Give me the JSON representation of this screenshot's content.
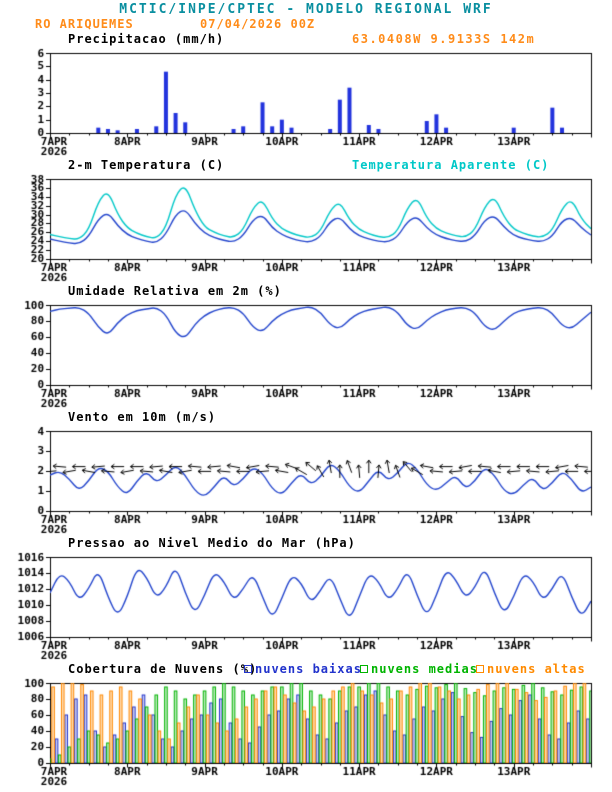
{
  "header": {
    "title": "MCTIC/INPE/CPTEC - MODELO REGIONAL WRF",
    "station": "RO ARIQUEMES",
    "run": "07/04/2026 00Z",
    "coords": "63.0408W 9.9133S 142m",
    "title_color": "#0a8fa0",
    "accent_color": "#ff8c1a"
  },
  "axis": {
    "day_labels": [
      "7APR",
      "8APR",
      "9APR",
      "10APR",
      "11APR",
      "12APR",
      "13APR"
    ],
    "year": "2026",
    "hours_total": 168,
    "step_hours": 3
  },
  "chart_data": [
    {
      "type": "bar",
      "title": "Precipitacao (mm/h)",
      "ylim": [
        0,
        6
      ],
      "yticks": [
        0,
        1,
        2,
        3,
        4,
        5,
        6
      ],
      "color": "#2233dd",
      "bars": [
        {
          "h": 15,
          "v": 0.4
        },
        {
          "h": 18,
          "v": 0.3
        },
        {
          "h": 21,
          "v": 0.2
        },
        {
          "h": 27,
          "v": 0.3
        },
        {
          "h": 33,
          "v": 0.5
        },
        {
          "h": 36,
          "v": 4.6
        },
        {
          "h": 39,
          "v": 1.5
        },
        {
          "h": 42,
          "v": 0.8
        },
        {
          "h": 57,
          "v": 0.3
        },
        {
          "h": 60,
          "v": 0.5
        },
        {
          "h": 66,
          "v": 2.3
        },
        {
          "h": 69,
          "v": 0.5
        },
        {
          "h": 72,
          "v": 1.0
        },
        {
          "h": 75,
          "v": 0.4
        },
        {
          "h": 87,
          "v": 0.3
        },
        {
          "h": 90,
          "v": 2.5
        },
        {
          "h": 93,
          "v": 3.4
        },
        {
          "h": 99,
          "v": 0.6
        },
        {
          "h": 102,
          "v": 0.3
        },
        {
          "h": 117,
          "v": 0.9
        },
        {
          "h": 120,
          "v": 1.4
        },
        {
          "h": 123,
          "v": 0.4
        },
        {
          "h": 144,
          "v": 0.4
        },
        {
          "h": 156,
          "v": 1.9
        },
        {
          "h": 159,
          "v": 0.4
        }
      ]
    },
    {
      "type": "line",
      "title": "2-m Temperatura (C)",
      "ylim": [
        20,
        38
      ],
      "yticks": [
        20,
        22,
        24,
        26,
        28,
        30,
        32,
        34,
        36,
        38
      ],
      "series": [
        {
          "name": "2-m Temperatura (C)",
          "color": "#2244cc",
          "values": [
            24.5,
            24.0,
            23.6,
            23.4,
            25.0,
            29.0,
            30.5,
            27.5,
            25.5,
            24.6,
            24.0,
            23.6,
            25.5,
            30.0,
            31.3,
            28.0,
            25.8,
            24.8,
            24.2,
            23.8,
            25.2,
            28.8,
            30.0,
            27.0,
            25.5,
            24.6,
            24.0,
            23.8,
            25.0,
            28.5,
            29.5,
            26.8,
            25.2,
            24.5,
            24.0,
            23.8,
            25.0,
            28.5,
            29.6,
            27.0,
            25.4,
            24.6,
            24.1,
            23.9,
            25.2,
            28.8,
            29.8,
            27.2,
            25.3,
            24.6,
            24.1,
            23.9,
            25.1,
            28.6,
            29.4,
            27.0,
            25.4
          ]
        },
        {
          "name": "Temperatura Aparente (C)",
          "color": "#00c8c8",
          "values": [
            25.5,
            25.0,
            24.6,
            24.4,
            26.5,
            33.0,
            35.5,
            30.0,
            27.0,
            25.8,
            25.0,
            24.6,
            27.0,
            34.5,
            36.8,
            31.0,
            27.2,
            26.0,
            25.2,
            24.8,
            26.5,
            31.5,
            33.5,
            29.0,
            26.8,
            25.8,
            25.1,
            24.8,
            26.2,
            31.0,
            33.0,
            28.8,
            26.6,
            25.7,
            25.0,
            24.8,
            26.3,
            31.5,
            34.0,
            29.2,
            26.8,
            25.9,
            25.2,
            24.9,
            26.5,
            31.8,
            34.2,
            29.4,
            26.7,
            25.8,
            25.1,
            24.9,
            26.4,
            31.4,
            33.6,
            29.0,
            26.8
          ]
        }
      ]
    },
    {
      "type": "line",
      "title": "Umidade Relativa em 2m (%)",
      "ylim": [
        0,
        100
      ],
      "yticks": [
        0,
        20,
        40,
        60,
        80,
        100
      ],
      "series": [
        {
          "name": "Umidade Relativa",
          "color": "#2244cc",
          "values": [
            92,
            95,
            96,
            97,
            90,
            72,
            62,
            78,
            88,
            93,
            95,
            97,
            88,
            65,
            58,
            76,
            87,
            93,
            96,
            97,
            90,
            72,
            66,
            80,
            89,
            94,
            96,
            98,
            91,
            75,
            70,
            82,
            90,
            94,
            96,
            98,
            91,
            74,
            69,
            81,
            89,
            94,
            96,
            97,
            90,
            73,
            68,
            80,
            90,
            94,
            96,
            97,
            90,
            74,
            70,
            81,
            91
          ]
        }
      ]
    },
    {
      "type": "wind",
      "title": "Vento em 10m (m/s)",
      "ylim": [
        0,
        4
      ],
      "yticks": [
        0,
        1,
        2,
        3,
        4
      ],
      "series": [
        {
          "name": "Vento em 10m",
          "color": "#2244cc",
          "values": [
            1.8,
            2.0,
            1.6,
            1.0,
            1.5,
            2.2,
            2.0,
            1.2,
            0.8,
            1.5,
            2.0,
            1.4,
            1.8,
            2.3,
            1.8,
            1.0,
            0.7,
            1.2,
            1.8,
            1.2,
            1.6,
            2.2,
            1.9,
            1.1,
            0.8,
            1.4,
            1.9,
            1.3,
            1.7,
            2.4,
            2.0,
            1.2,
            0.9,
            1.5,
            2.1,
            1.5,
            1.9,
            2.5,
            2.1,
            1.3,
            1.0,
            1.4,
            1.8,
            1.1,
            1.5,
            2.2,
            1.8,
            1.0,
            0.8,
            1.3,
            1.7,
            1.0,
            1.4,
            2.0,
            1.6,
            0.9,
            1.2
          ]
        }
      ],
      "arrows": {
        "y": 2.1,
        "color": "#000000",
        "dirs": [
          185,
          175,
          190,
          180,
          170,
          185,
          175,
          180,
          190,
          180,
          175,
          185,
          170,
          180,
          190,
          175,
          180,
          185,
          175,
          170,
          180,
          190,
          185,
          175,
          170,
          160,
          150,
          140,
          120,
          100,
          90,
          110,
          95,
          90,
          85,
          100,
          110,
          130,
          150,
          170,
          175,
          180,
          185,
          190,
          180,
          175,
          170,
          180,
          185,
          180,
          175,
          180,
          185,
          190,
          180,
          175,
          180
        ]
      }
    },
    {
      "type": "line",
      "title": "Pressao ao Nivel Medio do Mar (hPa)",
      "ylim": [
        1006,
        1016
      ],
      "yticks": [
        1006,
        1008,
        1010,
        1012,
        1014,
        1016
      ],
      "series": [
        {
          "name": "Pressao ao Nivel Medio do Mar",
          "color": "#2244cc",
          "values": [
            1011.5,
            1014.0,
            1013.0,
            1010.5,
            1012.0,
            1014.5,
            1011.0,
            1008.5,
            1011.0,
            1014.8,
            1013.5,
            1010.8,
            1012.2,
            1015.0,
            1011.5,
            1008.8,
            1011.2,
            1014.2,
            1013.0,
            1010.5,
            1012.0,
            1014.0,
            1011.0,
            1008.2,
            1010.8,
            1013.8,
            1012.8,
            1010.2,
            1011.8,
            1013.8,
            1010.8,
            1008.0,
            1011.0,
            1014.0,
            1013.0,
            1010.5,
            1012.0,
            1014.5,
            1011.2,
            1008.5,
            1011.2,
            1014.5,
            1013.2,
            1010.8,
            1012.2,
            1014.8,
            1011.5,
            1008.8,
            1011.0,
            1014.0,
            1013.0,
            1010.5,
            1012.0,
            1014.2,
            1011.0,
            1008.4,
            1010.5
          ]
        }
      ]
    },
    {
      "type": "cloud",
      "title": "Cobertura de Nuvens (%)",
      "ylim": [
        0,
        100
      ],
      "yticks": [
        0,
        20,
        40,
        60,
        80,
        100
      ],
      "series": [
        {
          "name": "nuvens baixas",
          "color": "#2233cc",
          "fill": "rgba(34,51,204,0.22)",
          "values": [
            10,
            30,
            60,
            80,
            85,
            40,
            20,
            35,
            50,
            70,
            85,
            60,
            30,
            20,
            40,
            55,
            60,
            75,
            80,
            50,
            30,
            25,
            45,
            60,
            65,
            80,
            85,
            55,
            35,
            30,
            50,
            65,
            70,
            85,
            90,
            60,
            40,
            35,
            55,
            70,
            65,
            80,
            88,
            58,
            38,
            32,
            52,
            68,
            60,
            78,
            85,
            55,
            35,
            30,
            50,
            65,
            55
          ]
        },
        {
          "name": "nuvens medias",
          "color": "#00b400",
          "fill": "rgba(0,180,0,0.25)",
          "values": [
            5,
            10,
            20,
            30,
            40,
            35,
            25,
            30,
            40,
            55,
            70,
            85,
            95,
            90,
            80,
            85,
            90,
            95,
            100,
            95,
            90,
            85,
            90,
            95,
            95,
            100,
            100,
            90,
            85,
            80,
            90,
            95,
            95,
            100,
            100,
            95,
            90,
            85,
            92,
            96,
            94,
            98,
            100,
            93,
            88,
            84,
            90,
            94,
            92,
            97,
            100,
            94,
            89,
            85,
            91,
            95,
            90
          ]
        },
        {
          "name": "nuvens altas",
          "color": "#ff8a00",
          "fill": "rgba(255,138,0,0.30)",
          "values": [
            95,
            100,
            100,
            98,
            90,
            85,
            90,
            95,
            90,
            80,
            60,
            40,
            30,
            50,
            70,
            85,
            60,
            50,
            40,
            55,
            70,
            80,
            90,
            95,
            85,
            75,
            65,
            70,
            80,
            90,
            95,
            100,
            90,
            85,
            75,
            80,
            90,
            95,
            100,
            100,
            95,
            90,
            80,
            85,
            92,
            98,
            100,
            100,
            92,
            88,
            78,
            82,
            90,
            96,
            100,
            100,
            95
          ]
        }
      ]
    }
  ]
}
